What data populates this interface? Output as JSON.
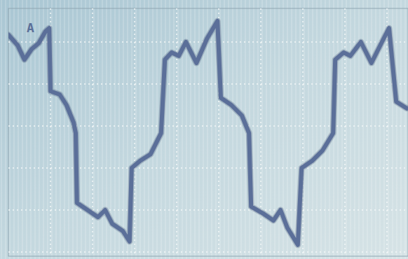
{
  "chart_data": {
    "type": "line",
    "annotation": "A",
    "x": [
      0,
      0.22,
      0.38,
      0.55,
      0.72,
      0.88,
      0.97,
      1.0,
      1.22,
      1.38,
      1.55,
      1.6,
      1.63,
      1.88,
      2.13,
      2.3,
      2.47,
      2.72,
      2.88,
      2.93,
      3.13,
      3.38,
      3.63,
      3.72,
      3.88,
      4.05,
      4.22,
      4.47,
      4.72,
      4.97,
      5.05,
      5.3,
      5.55,
      5.72,
      5.77,
      6.05,
      6.3,
      6.47,
      6.63,
      6.88,
      6.97,
      7.22,
      7.47,
      7.72,
      7.77,
      7.97,
      8.13,
      8.38,
      8.63,
      8.88,
      9.05,
      9.22,
      9.47
    ],
    "values": [
      2.17,
      1.92,
      1.58,
      1.83,
      1.97,
      2.25,
      2.33,
      0.83,
      0.75,
      0.5,
      0.08,
      -0.17,
      -1.83,
      -2.0,
      -2.17,
      -2.0,
      -2.33,
      -2.5,
      -2.75,
      -1.0,
      -0.83,
      -0.67,
      -0.17,
      1.58,
      1.75,
      1.67,
      2.0,
      1.5,
      2.08,
      2.5,
      0.67,
      0.5,
      0.25,
      -0.17,
      -1.92,
      -2.08,
      -2.25,
      -2.0,
      -2.42,
      -2.83,
      -1.0,
      -0.83,
      -0.58,
      -0.17,
      1.58,
      1.75,
      1.67,
      2.0,
      1.5,
      2.0,
      2.33,
      0.58,
      0.42
    ],
    "color": "#5b6f99",
    "xlim": [
      0,
      9.5
    ],
    "xticks": [
      1,
      2,
      3,
      4,
      5,
      6,
      7,
      8,
      9
    ],
    "ylim": [
      -3.1,
      2.8
    ],
    "yticks": [
      -3,
      -2,
      -1,
      0,
      1,
      2
    ],
    "grid": true,
    "tick_labels": false
  }
}
